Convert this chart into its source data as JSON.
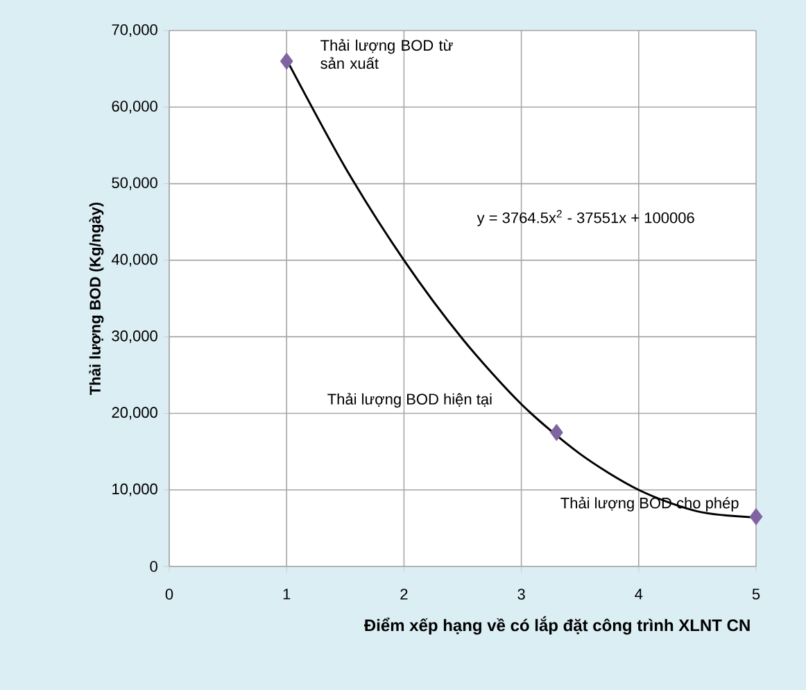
{
  "chart_data": {
    "type": "scatter",
    "xlabel": "Điểm xếp hạng về có lắp đặt công trình XLNT CN",
    "ylabel": "Thải lượng BOD (Kg/ngày)",
    "series": [
      {
        "color": "#8064a2",
        "marker": "diamond",
        "x": [
          1,
          3.3,
          5
        ],
        "values": [
          66000,
          17500,
          6500
        ]
      },
      {
        "type": "line",
        "color": "#000000",
        "marker": "none",
        "x": [
          1,
          1.5,
          2,
          2.5,
          3,
          3.5,
          4,
          4.5,
          5
        ],
        "values": [
          66200,
          52100,
          40000,
          29700,
          21200,
          14700,
          10000,
          7200,
          6400
        ]
      }
    ],
    "annotations": [
      {
        "text": "Thải lượng BOD từ sản xuất",
        "x": 1,
        "y": 66000
      },
      "Thải lượng BOD hiện tại",
      {
        "text": "Thải lượng BOD cho phép",
        "x": 5,
        "y": 6500
      },
      "y = 3764.5x$^{2}$ - 37551x + 100006"
    ],
    "xlim": [
      0,
      5
    ],
    "ylim": [
      0,
      70000
    ],
    "xticks": [
      0,
      1,
      2,
      3,
      4,
      5
    ],
    "yticks": [
      0,
      {
        "value": 10000,
        "label": "10,000"
      },
      {
        "value": 20000,
        "label": "20,000"
      },
      {
        "value": 30000,
        "label": "30,000"
      },
      {
        "value": 40000,
        "label": "40,000"
      },
      {
        "value": 50000,
        "label": "50,000"
      },
      {
        "value": 60000,
        "label": "60,000"
      },
      {
        "value": 70000,
        "label": "70,000"
      }
    ],
    "grid": true
  }
}
